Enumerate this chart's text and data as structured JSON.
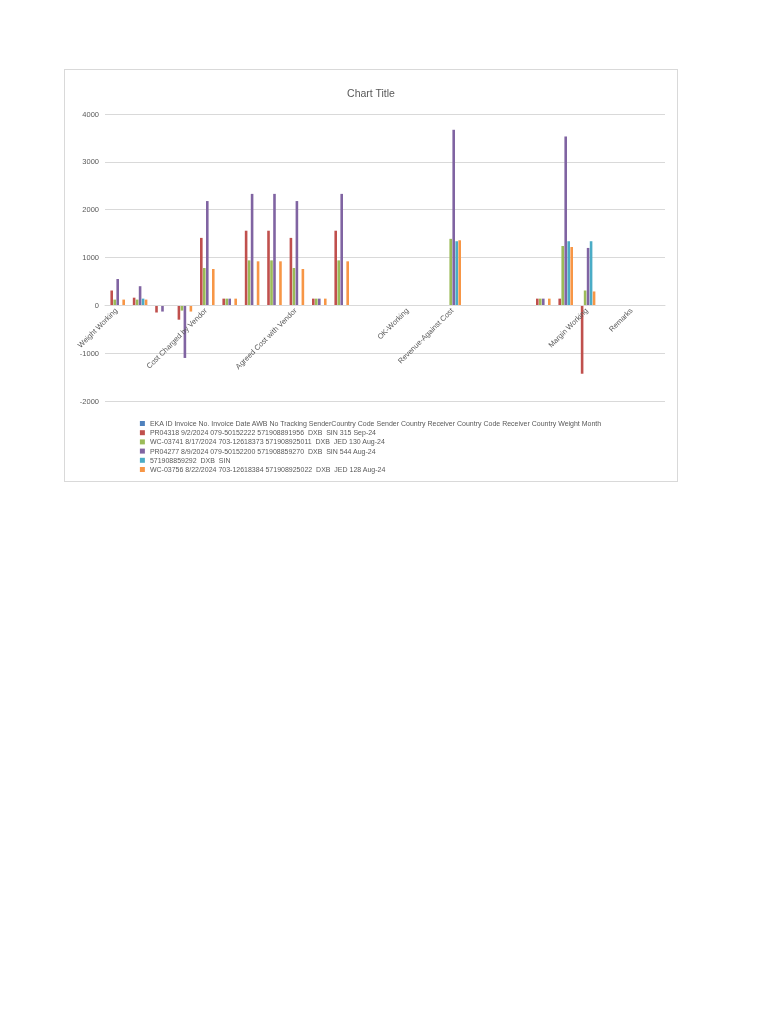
{
  "chart_data": {
    "type": "bar",
    "title": "Chart Title",
    "categories": [
      "Weight Working",
      null,
      null,
      null,
      "Cost Charged by Vendor",
      null,
      null,
      null,
      "Agreed Cost with Vendor",
      null,
      null,
      null,
      null,
      "OK-Working",
      null,
      "Revenue-Against Cost",
      null,
      null,
      null,
      null,
      null,
      "Margin Working",
      null,
      "Remarks",
      null
    ],
    "series": [
      {
        "name": "EKA ID Invoice No. Invoice Date AWB No Tracking SenderCountry Code Sender Country Receiver Country Code Receiver Country Weight Month",
        "color": "#4f81bd",
        "values": [
          null,
          null,
          null,
          null,
          null,
          null,
          null,
          null,
          null,
          null,
          null,
          null,
          null,
          null,
          null,
          null,
          null,
          null,
          null,
          null,
          null,
          null,
          null,
          null,
          null
        ]
      },
      {
        "name": "PR04318 9/2/2024 079-50152222 571908891956  DXB  SIN 315 Sep-24",
        "color": "#c0504d",
        "values": [
          310,
          160,
          -150,
          -300,
          1410,
          140,
          1560,
          1560,
          1410,
          140,
          1560,
          null,
          null,
          null,
          null,
          null,
          null,
          null,
          null,
          140,
          140,
          -1430,
          null,
          null,
          null
        ]
      },
      {
        "name": "WC-03741 8/17/2024 703-12618373 571908925011  DXB  JED 130 Aug-24",
        "color": "#9bbb59",
        "values": [
          120,
          120,
          null,
          -110,
          780,
          140,
          940,
          940,
          780,
          140,
          940,
          null,
          null,
          null,
          null,
          1390,
          null,
          null,
          null,
          140,
          1240,
          310,
          null,
          null,
          null
        ]
      },
      {
        "name": "PR04277 8/9/2024 079-50152200 571908859270  DXB  SIN 544 Aug-24",
        "color": "#8064a2",
        "values": [
          550,
          400,
          -130,
          -1100,
          2180,
          140,
          2330,
          2330,
          2180,
          140,
          2330,
          null,
          null,
          null,
          null,
          3670,
          null,
          null,
          null,
          140,
          3530,
          1200,
          null,
          null,
          null
        ]
      },
      {
        "name": "571908859292  DXB  SIN",
        "color": "#4bacc6",
        "values": [
          null,
          140,
          null,
          null,
          null,
          null,
          null,
          null,
          null,
          null,
          null,
          null,
          null,
          null,
          null,
          1340,
          null,
          null,
          null,
          null,
          1340,
          1340,
          null,
          null,
          null
        ]
      },
      {
        "name": "WC-03756 8/22/2024 703-12618384 571908925022  DXB  JED 128 Aug-24",
        "color": "#f79646",
        "values": [
          120,
          120,
          null,
          -130,
          760,
          140,
          920,
          920,
          760,
          140,
          920,
          null,
          null,
          null,
          null,
          1360,
          null,
          null,
          null,
          140,
          1220,
          290,
          null,
          null,
          null
        ]
      }
    ],
    "ylim": [
      -2000,
      4000
    ],
    "yticks": [
      -2000,
      -1000,
      0,
      1000,
      2000,
      3000,
      4000
    ],
    "grid": "y",
    "legend": "bottom"
  }
}
